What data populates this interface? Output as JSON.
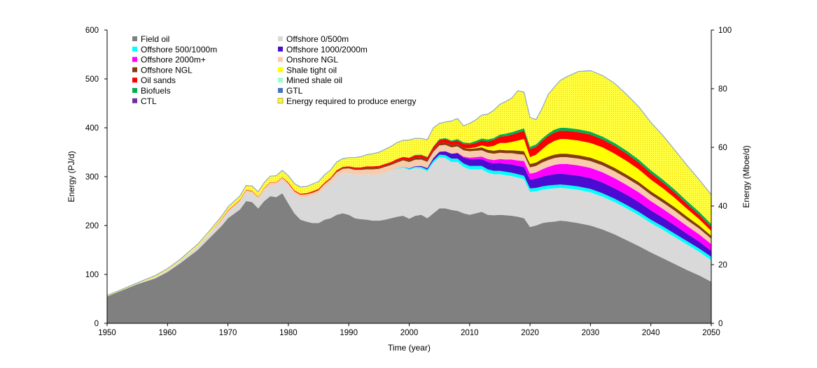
{
  "chart_data": {
    "type": "area",
    "stacked": true,
    "xlabel": "Time (year)",
    "ylabel_left": "Energy  (PJ/d)",
    "ylabel_right": "Energy (Mboe/d)",
    "xlim": [
      1950,
      2050
    ],
    "ylim_left": [
      0,
      600
    ],
    "ylim_right": [
      0,
      100
    ],
    "x_ticks": [
      "1950",
      "1960",
      "1970",
      "1980",
      "1990",
      "2000",
      "2010",
      "2020",
      "2030",
      "2040",
      "2050"
    ],
    "y_ticks_left": [
      "0",
      "100",
      "200",
      "300",
      "400",
      "500",
      "600"
    ],
    "y_ticks_right": [
      "0",
      "20",
      "40",
      "60",
      "80",
      "100"
    ],
    "grid": false,
    "legend_position": "top-left, inside plot, two columns",
    "x": [
      1950,
      1952,
      1955,
      1958,
      1960,
      1962,
      1965,
      1967,
      1969,
      1970,
      1972,
      1973,
      1974,
      1975,
      1976,
      1977,
      1978,
      1979,
      1980,
      1981,
      1982,
      1983,
      1984,
      1985,
      1986,
      1987,
      1988,
      1989,
      1990,
      1991,
      1992,
      1993,
      1994,
      1995,
      1996,
      1997,
      1998,
      1999,
      2000,
      2001,
      2002,
      2003,
      2004,
      2005,
      2006,
      2007,
      2008,
      2009,
      2010,
      2011,
      2012,
      2013,
      2014,
      2015,
      2016,
      2017,
      2018,
      2019,
      2020,
      2021,
      2022,
      2023,
      2024,
      2025,
      2026,
      2028,
      2030,
      2032,
      2034,
      2036,
      2038,
      2040,
      2042,
      2044,
      2046,
      2048,
      2050
    ],
    "series": [
      {
        "name": "Field oil",
        "color": "#808080",
        "values": [
          55,
          65,
          80,
          92,
          105,
          122,
          150,
          175,
          200,
          215,
          233,
          250,
          248,
          235,
          250,
          260,
          258,
          266,
          245,
          225,
          212,
          208,
          205,
          205,
          212,
          215,
          222,
          225,
          222,
          215,
          213,
          212,
          210,
          210,
          212,
          215,
          218,
          220,
          214,
          220,
          222,
          215,
          225,
          235,
          235,
          232,
          230,
          225,
          222,
          225,
          228,
          222,
          221,
          222,
          221,
          220,
          218,
          215,
          197,
          200,
          205,
          207,
          208,
          210,
          209,
          205,
          200,
          192,
          182,
          170,
          158,
          145,
          133,
          121,
          109,
          98,
          85
        ]
      },
      {
        "name": "Offshore 0/500m",
        "color": "#d9d9d9",
        "values": [
          0,
          0,
          1,
          2,
          3,
          4,
          6,
          8,
          10,
          12,
          15,
          18,
          18,
          19,
          21,
          23,
          25,
          27,
          36,
          40,
          45,
          50,
          55,
          60,
          65,
          72,
          78,
          82,
          85,
          89,
          91,
          93,
          94,
          95,
          96,
          97,
          98,
          99,
          100,
          98,
          95,
          96,
          104,
          105,
          103,
          98,
          100,
          95,
          93,
          90,
          87,
          86,
          84,
          83,
          82,
          81,
          80,
          80,
          72,
          70,
          68,
          68,
          68,
          67,
          67,
          68,
          68,
          67,
          66,
          65,
          63,
          60,
          58,
          55,
          52,
          48,
          44
        ]
      },
      {
        "name": "Offshore 500/1000m",
        "color": "#00ffff",
        "values": [
          0,
          0,
          0,
          0,
          0,
          0,
          0,
          0,
          0,
          0,
          0,
          0,
          0,
          0,
          0,
          0,
          0,
          0,
          0,
          0,
          0,
          0,
          0,
          0,
          0,
          0,
          0,
          0,
          0,
          0,
          0,
          0,
          0,
          0,
          0,
          0,
          1,
          1.5,
          2,
          2.5,
          3,
          3.5,
          4,
          5,
          6,
          7,
          7,
          7,
          7,
          7,
          7,
          7,
          7,
          7,
          7,
          7,
          7,
          7,
          7,
          7,
          7,
          7,
          7,
          7,
          7,
          7,
          7,
          7,
          7,
          7,
          7,
          7,
          7,
          7,
          7,
          7,
          7
        ]
      },
      {
        "name": "Offshore 1000/2000m",
        "color": "#4b0bd0",
        "values": [
          0,
          0,
          0,
          0,
          0,
          0,
          0,
          0,
          0,
          0,
          0,
          0,
          0,
          0,
          0,
          0,
          0,
          0,
          0,
          0,
          0,
          0,
          0,
          0,
          0,
          0,
          0,
          0,
          0,
          0,
          0,
          0,
          0,
          0,
          0,
          0,
          0,
          0,
          1,
          1,
          2,
          3,
          5,
          6,
          8,
          10,
          11,
          12,
          14,
          14,
          14,
          15,
          15,
          16,
          16,
          17,
          17,
          18,
          18,
          19,
          20,
          21,
          22,
          22,
          22,
          22,
          22,
          22,
          21,
          21,
          20,
          19,
          18,
          17,
          15,
          14,
          12
        ]
      },
      {
        "name": "Offshore 2000m+",
        "color": "#ff00ff",
        "values": [
          0,
          0,
          0,
          0,
          0,
          0,
          0,
          0,
          0,
          0,
          0,
          0,
          0,
          0,
          0,
          0,
          0,
          0,
          0,
          0,
          0,
          0,
          0,
          0,
          0,
          0,
          0,
          0,
          0,
          0,
          0,
          0,
          0,
          0,
          0,
          0,
          0,
          0,
          0,
          0,
          0,
          0,
          0,
          0,
          0,
          0,
          1,
          2,
          3,
          4,
          5,
          6,
          7,
          8,
          9,
          10,
          11,
          12,
          12,
          13,
          15,
          17,
          19,
          20,
          21,
          21,
          21,
          21,
          21,
          20,
          20,
          19,
          18,
          17,
          16,
          15,
          14
        ]
      },
      {
        "name": "Onshore NGL",
        "color": "#f8cbad",
        "values": [
          0,
          0,
          0,
          1,
          1,
          1,
          2,
          2,
          3,
          3,
          4,
          4,
          4,
          4,
          5,
          5,
          5,
          5,
          5,
          5,
          6,
          6,
          7,
          7,
          8,
          8,
          9,
          9,
          10,
          10,
          10,
          10,
          11,
          11,
          12,
          12,
          12,
          13,
          13,
          13,
          13,
          13,
          13,
          13,
          13,
          13,
          13,
          13,
          13,
          13,
          13,
          13,
          13,
          13,
          13,
          13,
          13,
          13,
          13,
          13,
          14,
          14,
          14,
          14,
          14,
          14,
          14,
          14,
          14,
          14,
          14,
          13,
          13,
          13,
          12,
          12,
          11
        ]
      },
      {
        "name": "Offshore NGL",
        "color": "#843c0c",
        "values": [
          0,
          0,
          0,
          0,
          0,
          0,
          0,
          0,
          0,
          0,
          0,
          0,
          0,
          0,
          0,
          0,
          0,
          0,
          0,
          0,
          0,
          0,
          1,
          1,
          1,
          1,
          2,
          2,
          2,
          2,
          2,
          3,
          3,
          3,
          3,
          3,
          3,
          3,
          4,
          4,
          4,
          4,
          4,
          5,
          5,
          5,
          5,
          5,
          5,
          5,
          6,
          6,
          6,
          6,
          6,
          6,
          7,
          7,
          7,
          7,
          7,
          7,
          7,
          7,
          7,
          7,
          7,
          7,
          7,
          7,
          7,
          7,
          7,
          7,
          7,
          6,
          6
        ]
      },
      {
        "name": "Shale tight oil",
        "color": "#ffff00",
        "values": [
          0,
          0,
          0,
          0,
          0,
          0,
          0,
          0,
          0,
          0,
          0,
          0,
          0,
          0,
          0,
          0,
          0,
          0,
          0,
          0,
          0,
          0,
          0,
          0,
          0,
          0,
          0,
          0,
          0,
          0,
          0,
          0,
          0,
          0,
          0,
          0,
          0,
          0,
          0,
          0,
          0,
          0,
          0,
          0,
          0,
          0,
          0,
          0,
          1,
          2,
          4,
          6,
          10,
          14,
          15,
          17,
          21,
          25,
          14,
          16,
          20,
          25,
          28,
          30,
          30,
          30,
          30,
          30,
          29,
          28,
          26,
          24,
          22,
          19,
          16,
          13,
          10
        ]
      },
      {
        "name": "Oil sands",
        "color": "#ff0000",
        "values": [
          0,
          0,
          0,
          0,
          0,
          0,
          0,
          0,
          1,
          1,
          1,
          1,
          1,
          1,
          1,
          1,
          1,
          1,
          2,
          2,
          2,
          2,
          2,
          2,
          2,
          2,
          2,
          2,
          2,
          3,
          3,
          3,
          3,
          3,
          3,
          3,
          4,
          4,
          4,
          5,
          5,
          5,
          6,
          6,
          7,
          7,
          7,
          8,
          8,
          9,
          10,
          11,
          12,
          13,
          14,
          15,
          16,
          17,
          16,
          16,
          17,
          17,
          17,
          17,
          17,
          17,
          17,
          16,
          16,
          15,
          14,
          13,
          12,
          11,
          10,
          9,
          8
        ]
      },
      {
        "name": "Mined shale oil",
        "color": "#99ffcc",
        "values": [
          0,
          0,
          0,
          0,
          0,
          0,
          0,
          0,
          0,
          0,
          0,
          0,
          0,
          0,
          0,
          0,
          0,
          0,
          0,
          0,
          0,
          0,
          0,
          0,
          0,
          0,
          0,
          0,
          0,
          0,
          0,
          0,
          0,
          0,
          0,
          0,
          0,
          0,
          0,
          0,
          0,
          0,
          0,
          0,
          0,
          0,
          0,
          0,
          0,
          0,
          0,
          0,
          0,
          0,
          0,
          0,
          0,
          0,
          0,
          0,
          0,
          0,
          0,
          0,
          0,
          0,
          0,
          0,
          0,
          0,
          0,
          0,
          0,
          0,
          0,
          0,
          0
        ]
      },
      {
        "name": "Biofuels",
        "color": "#00b050",
        "values": [
          0,
          0,
          0,
          0,
          0,
          0,
          0,
          0,
          0,
          0,
          0,
          0,
          0,
          0,
          0,
          0,
          0,
          0,
          0,
          0,
          0,
          0,
          0,
          0,
          0,
          0,
          0,
          0,
          0,
          0,
          0,
          0,
          0,
          0,
          0,
          0,
          0,
          0,
          1,
          1,
          1,
          1,
          1,
          2,
          2,
          2,
          3,
          3,
          3,
          4,
          4,
          4,
          4,
          4,
          5,
          5,
          5,
          5,
          5,
          5,
          5,
          5,
          6,
          6,
          6,
          6,
          6,
          6,
          6,
          6,
          6,
          6,
          6,
          6,
          6,
          6,
          6
        ]
      },
      {
        "name": "GTL",
        "color": "#4472c4",
        "values": [
          0,
          0,
          0,
          0,
          0,
          0,
          0,
          0,
          0,
          0,
          0,
          0,
          0,
          0,
          0,
          0,
          0,
          0,
          0,
          0,
          0,
          0,
          0,
          0,
          0,
          0,
          0,
          0,
          0,
          0,
          0,
          0,
          0,
          0,
          0,
          0,
          0,
          0,
          0,
          0,
          0,
          0,
          0,
          0,
          0,
          0,
          0,
          0,
          0,
          0,
          0,
          0,
          0,
          0,
          0,
          0,
          0,
          0,
          0,
          0,
          0,
          0,
          0,
          0,
          0,
          0,
          0,
          0,
          0,
          0,
          0,
          0,
          0,
          0,
          0,
          0,
          0
        ]
      },
      {
        "name": "CTL",
        "color": "#7030a0",
        "values": [
          0,
          0,
          0,
          0,
          0,
          0,
          0,
          0,
          0,
          0,
          0,
          0,
          0,
          0,
          0,
          0,
          0,
          0,
          0,
          0,
          0,
          0,
          0,
          0,
          0,
          0,
          0,
          0,
          0,
          0,
          0,
          0,
          0,
          0,
          0,
          0,
          0,
          0,
          0,
          0,
          0,
          0,
          0,
          0,
          0,
          0,
          0,
          0,
          0,
          0,
          0,
          0,
          0,
          0,
          0,
          0,
          0,
          0,
          0,
          0,
          0,
          0,
          0,
          0,
          0,
          0,
          0,
          0,
          0,
          0,
          0,
          0,
          0,
          0,
          0,
          0,
          0
        ]
      },
      {
        "name": "Energy required to produce energy",
        "color": "#ffff33",
        "pattern": true,
        "values": [
          2,
          2,
          2,
          3,
          3,
          3,
          4,
          5,
          6,
          7,
          8,
          9,
          10,
          10,
          11,
          12,
          13,
          14,
          14,
          14,
          14,
          14,
          15,
          15,
          16,
          16,
          17,
          17,
          18,
          20,
          22,
          24,
          26,
          28,
          30,
          32,
          34,
          34,
          36,
          34,
          33,
          35,
          38,
          32,
          33,
          40,
          42,
          34,
          40,
          43,
          48,
          52,
          57,
          62,
          66,
          70,
          81,
          74,
          60,
          51,
          62,
          80,
          87,
          97,
          104,
          118,
          125,
          125,
          122,
          115,
          108,
          98,
          90,
          81,
          73,
          66,
          60
        ]
      }
    ]
  }
}
